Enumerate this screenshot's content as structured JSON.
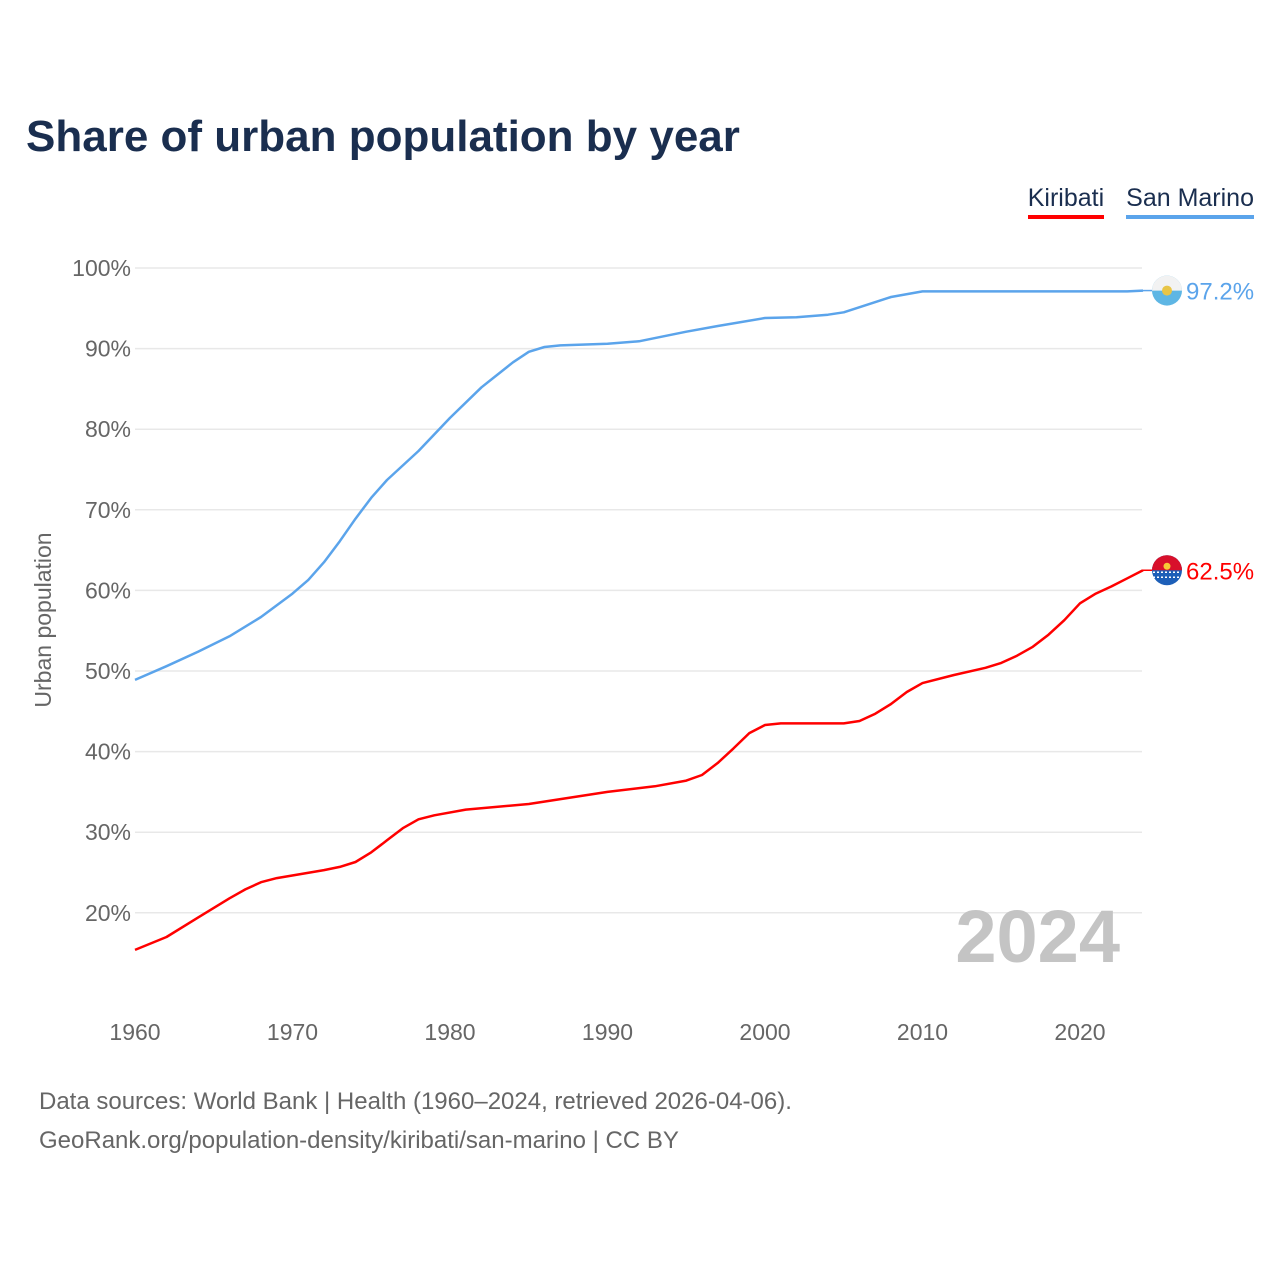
{
  "chart_data": {
    "type": "line",
    "title": "Share of urban population by year",
    "xlabel": "",
    "ylabel": "Urban population",
    "xlim": [
      1960,
      2024
    ],
    "ylim": [
      10,
      100
    ],
    "x_ticks": [
      1960,
      1970,
      1980,
      1990,
      2000,
      2010,
      2020
    ],
    "y_ticks": [
      20,
      30,
      40,
      50,
      60,
      70,
      80,
      90,
      100
    ],
    "y_tick_labels": [
      "20%",
      "30%",
      "40%",
      "50%",
      "60%",
      "70%",
      "80%",
      "90%",
      "100%"
    ],
    "grid": true,
    "legend_position": "top-right",
    "watermark_year": "2024",
    "series": [
      {
        "name": "Kiribati",
        "color": "#ff0000",
        "end_label": "62.5%",
        "flag": "kiribati-flag",
        "x": [
          1960,
          1962,
          1964,
          1966,
          1967,
          1968,
          1969,
          1972,
          1973,
          1974,
          1975,
          1976,
          1977,
          1978,
          1979,
          1981,
          1985,
          1990,
          1993,
          1995,
          1996,
          1997,
          1998,
          1999,
          2000,
          2001,
          2005,
          2006,
          2007,
          2008,
          2009,
          2010,
          2012,
          2014,
          2015,
          2016,
          2017,
          2018,
          2019,
          2020,
          2021,
          2022,
          2023,
          2024
        ],
        "values": [
          15.4,
          17.0,
          19.4,
          21.8,
          22.9,
          23.8,
          24.3,
          25.3,
          25.7,
          26.3,
          27.5,
          29.0,
          30.5,
          31.6,
          32.1,
          32.8,
          33.5,
          35.0,
          35.7,
          36.4,
          37.1,
          38.6,
          40.4,
          42.3,
          43.3,
          43.5,
          43.5,
          43.8,
          44.7,
          45.9,
          47.4,
          48.5,
          49.5,
          50.4,
          51.0,
          51.9,
          53.0,
          54.5,
          56.3,
          58.4,
          59.6,
          60.5,
          61.5,
          62.5
        ]
      },
      {
        "name": "San Marino",
        "color": "#5ba4eb",
        "end_label": "97.2%",
        "flag": "san-marino-flag",
        "x": [
          1960,
          1962,
          1964,
          1966,
          1968,
          1970,
          1971,
          1972,
          1973,
          1974,
          1975,
          1976,
          1978,
          1980,
          1982,
          1984,
          1985,
          1986,
          1987,
          1990,
          1992,
          1995,
          1997,
          2000,
          2002,
          2004,
          2005,
          2008,
          2010,
          2023,
          2024
        ],
        "values": [
          48.9,
          50.6,
          52.4,
          54.3,
          56.7,
          59.6,
          61.3,
          63.5,
          66.1,
          68.9,
          71.5,
          73.7,
          77.3,
          81.4,
          85.2,
          88.3,
          89.6,
          90.2,
          90.4,
          90.6,
          90.9,
          92.1,
          92.8,
          93.8,
          93.9,
          94.2,
          94.5,
          96.4,
          97.1,
          97.1,
          97.2
        ]
      }
    ]
  },
  "footer": {
    "line1": "Data sources: World Bank | Health (1960–2024, retrieved 2026-04-06).",
    "line2": "GeoRank.org/population-density/kiribati/san-marino | CC BY"
  }
}
